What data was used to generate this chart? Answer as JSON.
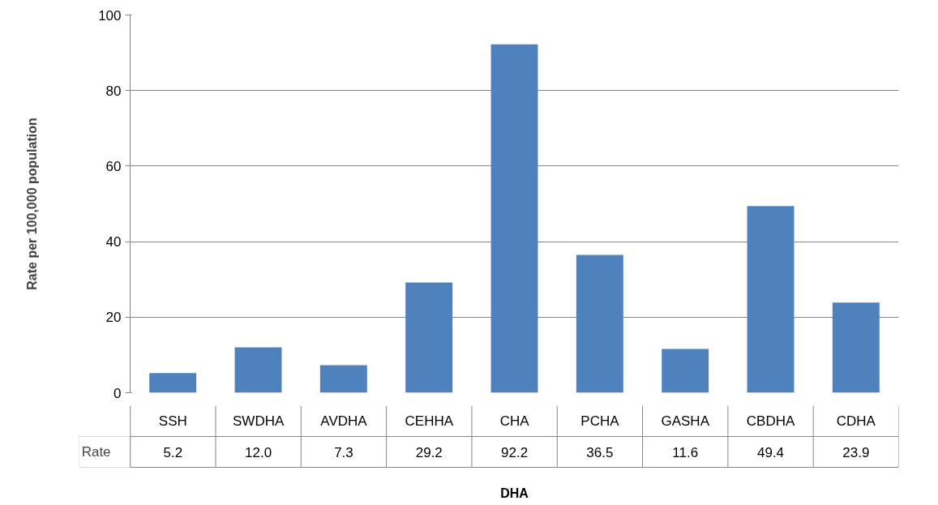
{
  "chart_data": {
    "type": "bar",
    "xlabel": "DHA",
    "ylabel": "Rate per 100,000 population",
    "categories": [
      "SSH",
      "SWDHA",
      "AVDHA",
      "CEHHA",
      "CHA",
      "PCHA",
      "GASHA",
      "CBDHA",
      "CDHA"
    ],
    "series": [
      {
        "name": "Rate",
        "color": "#4f81bd",
        "values": [
          5.2,
          12.0,
          7.3,
          29.2,
          92.2,
          36.5,
          11.6,
          49.4,
          23.9
        ],
        "value_labels": [
          "5.2",
          "12.0",
          "7.3",
          "29.2",
          "92.2",
          "36.5",
          "11.6",
          "49.4",
          "23.9"
        ]
      }
    ],
    "ylim": [
      0,
      100
    ],
    "yticks": [
      0,
      20,
      40,
      60,
      80,
      100
    ],
    "grid": "y"
  }
}
